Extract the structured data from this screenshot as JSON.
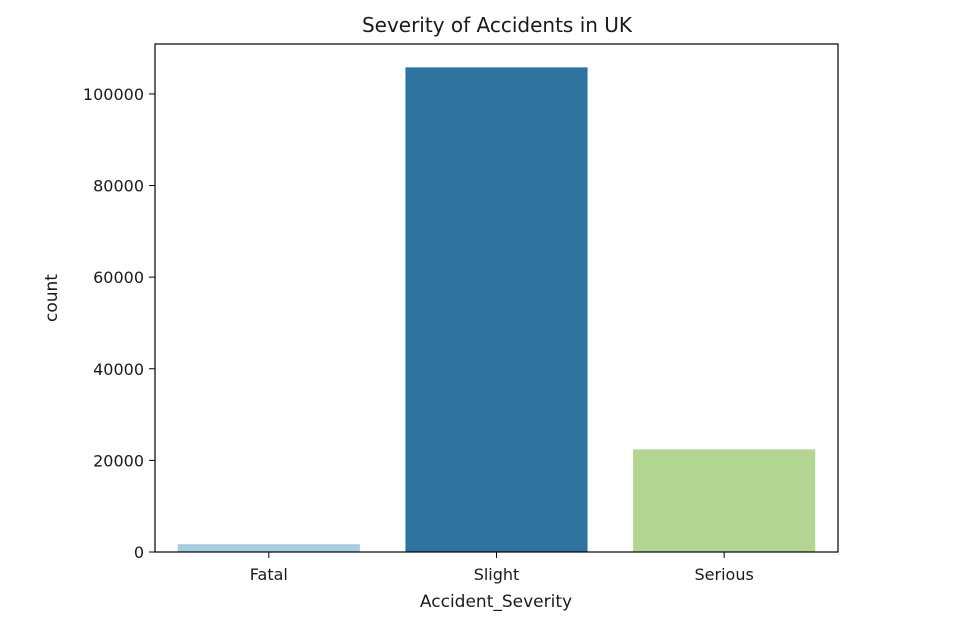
{
  "chart_data": {
    "type": "bar",
    "title": "Severity of Accidents in UK",
    "xlabel": "Accident_Severity",
    "ylabel": "count",
    "categories": [
      "Fatal",
      "Slight",
      "Serious"
    ],
    "values": [
      1700,
      105800,
      22400
    ],
    "colors": [
      "#a6cee3",
      "#2f73a1",
      "#b2d591"
    ],
    "ylim": [
      0,
      110900
    ],
    "yticks": [
      0,
      20000,
      40000,
      60000,
      80000,
      100000
    ],
    "grid": false,
    "legend": "none"
  }
}
